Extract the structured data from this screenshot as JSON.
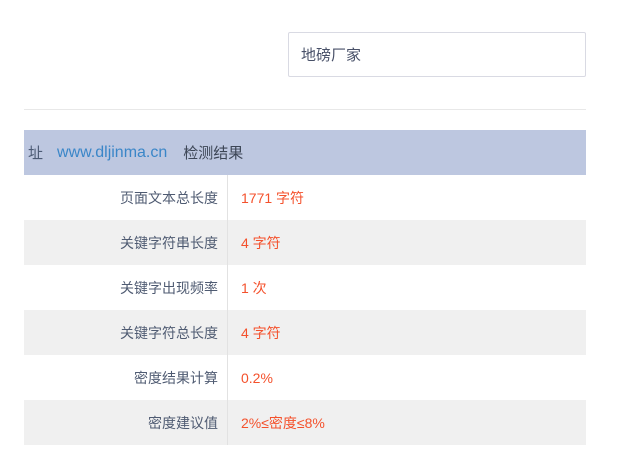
{
  "keyword_input": {
    "value": "地磅厂家"
  },
  "results_panel": {
    "header": {
      "label_prefix": "址",
      "url": "www.dljinma.cn",
      "title": "检测结果"
    },
    "rows": [
      {
        "label": "页面文本总长度",
        "value": "1771 字符"
      },
      {
        "label": "关键字符串长度",
        "value": "4 字符"
      },
      {
        "label": "关键字出现频率",
        "value": "1 次"
      },
      {
        "label": "关键字符总长度",
        "value": "4 字符"
      },
      {
        "label": "密度结果计算",
        "value": "0.2%"
      },
      {
        "label": "密度建议值",
        "value": "2%≤密度≤8%"
      }
    ]
  },
  "colors": {
    "header_bg": "#bdc7e0",
    "alt_row_bg": "#f0f0f0",
    "value_text": "#f4512c",
    "link_text": "#3a86c8",
    "label_text": "#4f5b72"
  }
}
